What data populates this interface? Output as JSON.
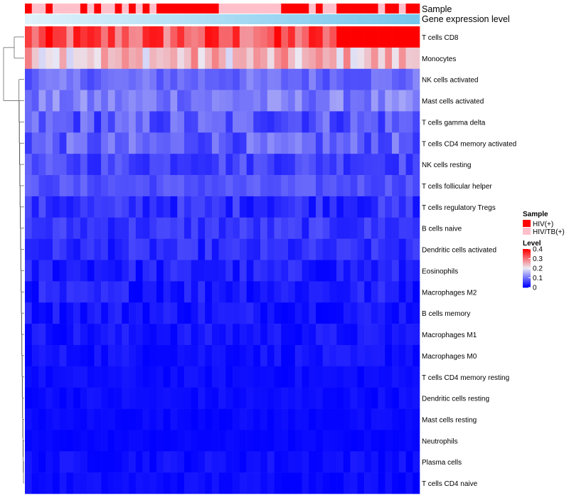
{
  "chart_data": {
    "type": "heatmap",
    "annotation_tracks": [
      {
        "name": "Sample",
        "values": [
          "HIV(+)",
          "HIV/TB(+)",
          "HIV/TB(+)",
          "HIV(+)",
          "HIV/TB(+)",
          "HIV/TB(+)",
          "HIV/TB(+)",
          "HIV/TB(+)",
          "HIV(+)",
          "HIV/TB(+)",
          "HIV(+)",
          "HIV/TB(+)",
          "HIV/TB(+)",
          "HIV(+)",
          "HIV/TB(+)",
          "HIV(+)",
          "HIV/TB(+)",
          "HIV(+)",
          "HIV/TB(+)",
          "HIV(+)",
          "HIV(+)",
          "HIV(+)",
          "HIV(+)",
          "HIV(+)",
          "HIV(+)",
          "HIV(+)",
          "HIV(+)",
          "HIV(+)",
          "HIV/TB(+)",
          "HIV/TB(+)",
          "HIV/TB(+)",
          "HIV/TB(+)",
          "HIV/TB(+)",
          "HIV/TB(+)",
          "HIV/TB(+)",
          "HIV/TB(+)",
          "HIV/TB(+)",
          "HIV(+)",
          "HIV(+)",
          "HIV(+)",
          "HIV(+)",
          "HIV/TB(+)",
          "HIV(+)",
          "HIV/TB(+)",
          "HIV/TB(+)",
          "HIV(+)",
          "HIV(+)",
          "HIV(+)",
          "HIV(+)",
          "HIV(+)",
          "HIV(+)",
          "HIV/TB(+)",
          "HIV(+)",
          "HIV(+)",
          "HIV/TB(+)",
          "HIV(+)",
          "HIV(+)"
        ]
      },
      {
        "name": "Gene expression level",
        "gradient": [
          "#e0f2fb",
          "#74c5ec"
        ]
      }
    ],
    "rows": [
      "T cells CD8",
      "Monocytes",
      "NK cells activated",
      "Mast cells activated",
      "T cells gamma delta",
      "T cells CD4 memory activated",
      "NK cells resting",
      "T cells follicular helper",
      "T cells regulatory  Tregs",
      "B cells naive",
      "Dendritic cells activated",
      "Eosinophils",
      "Macrophages M2",
      "B cells memory",
      "Macrophages M1",
      "Macrophages M0",
      "T cells CD4 memory resting",
      "Dendritic cells resting",
      "Mast cells resting",
      "Neutrophils",
      "Plasma cells",
      "T cells CD4 naive"
    ],
    "n_columns": 57,
    "row_profiles": {
      "T cells CD8": [
        0.25,
        0.4
      ],
      "Monocytes": [
        0.18,
        0.3
      ],
      "NK cells activated": [
        0.06,
        0.12
      ],
      "Mast cells activated": [
        0.07,
        0.14
      ],
      "T cells gamma delta": [
        0.03,
        0.12
      ],
      "T cells CD4 memory activated": [
        0.04,
        0.12
      ],
      "NK cells resting": [
        0.03,
        0.09
      ],
      "T cells follicular helper": [
        0.05,
        0.09
      ],
      "T cells regulatory  Tregs": [
        0.01,
        0.07
      ],
      "B cells naive": [
        0.02,
        0.07
      ],
      "Dendritic cells activated": [
        0.01,
        0.06
      ],
      "Eosinophils": [
        0.0,
        0.05
      ],
      "Macrophages M2": [
        0.0,
        0.05
      ],
      "B cells memory": [
        0.0,
        0.04
      ],
      "Macrophages M1": [
        0.0,
        0.035
      ],
      "Macrophages M0": [
        0.0,
        0.03
      ],
      "T cells CD4 memory resting": [
        0.0,
        0.02
      ],
      "Dendritic cells resting": [
        0.0,
        0.02
      ],
      "Mast cells resting": [
        0.0,
        0.015
      ],
      "Neutrophils": [
        0.0,
        0.01
      ],
      "Plasma cells": [
        0.0,
        0.025
      ],
      "T cells CD4 naive": [
        0.0,
        0.02
      ]
    },
    "scale": {
      "min": 0,
      "max": 0.4,
      "ticks": [
        0.4,
        0.3,
        0.2,
        0.1,
        0
      ],
      "low_color": "#0000ff",
      "mid_color": "#ebebf5",
      "high_color": "#ff0000",
      "mid_value": 0.2
    },
    "legend": {
      "sample_title": "Sample",
      "sample_entries": [
        {
          "label": "HIV(+)",
          "color": "#ff0000"
        },
        {
          "label": "HIV/TB(+)",
          "color": "#ffc0cb"
        }
      ],
      "level_title": "Level",
      "position": "right"
    },
    "colors": {
      "HIV(+)": "#ff0000",
      "HIV/TB(+)": "#ffc0cb"
    }
  }
}
